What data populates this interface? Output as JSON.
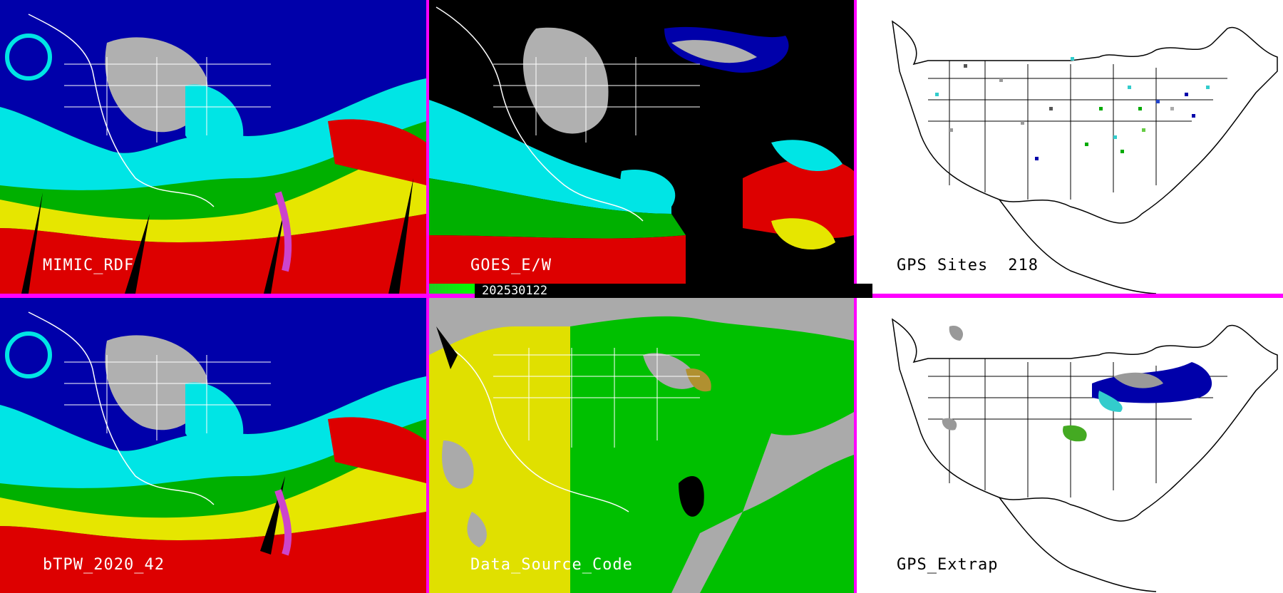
{
  "panels": [
    {
      "label": "MIMIC_RDF",
      "theme": "tpw",
      "dark_label": false
    },
    {
      "label": "GOES_E/W",
      "theme": "goes",
      "dark_label": false
    },
    {
      "label": "GPS Sites",
      "count": "218",
      "theme": "gps",
      "dark_label": true
    },
    {
      "label": "bTPW_2020_42",
      "theme": "tpw",
      "dark_label": false
    },
    {
      "label": "Data_Source_Code",
      "theme": "dsc",
      "dark_label": false
    },
    {
      "label": "GPS_Extrap",
      "theme": "gpsx",
      "dark_label": true
    }
  ],
  "timestamp": "202530122",
  "colors": {
    "border": "#ff00ff",
    "tpw_dry": "#0000aa",
    "tpw_mid": "#00e5e5",
    "tpw_moist": "#00b000",
    "tpw_wet": "#e6e600",
    "tpw_max": "#dd0000",
    "gray_dry": "#b0b0b0",
    "dsc_gray": "#aaaaaa",
    "dsc_yellow": "#e0e000",
    "dsc_green": "#00c000"
  }
}
